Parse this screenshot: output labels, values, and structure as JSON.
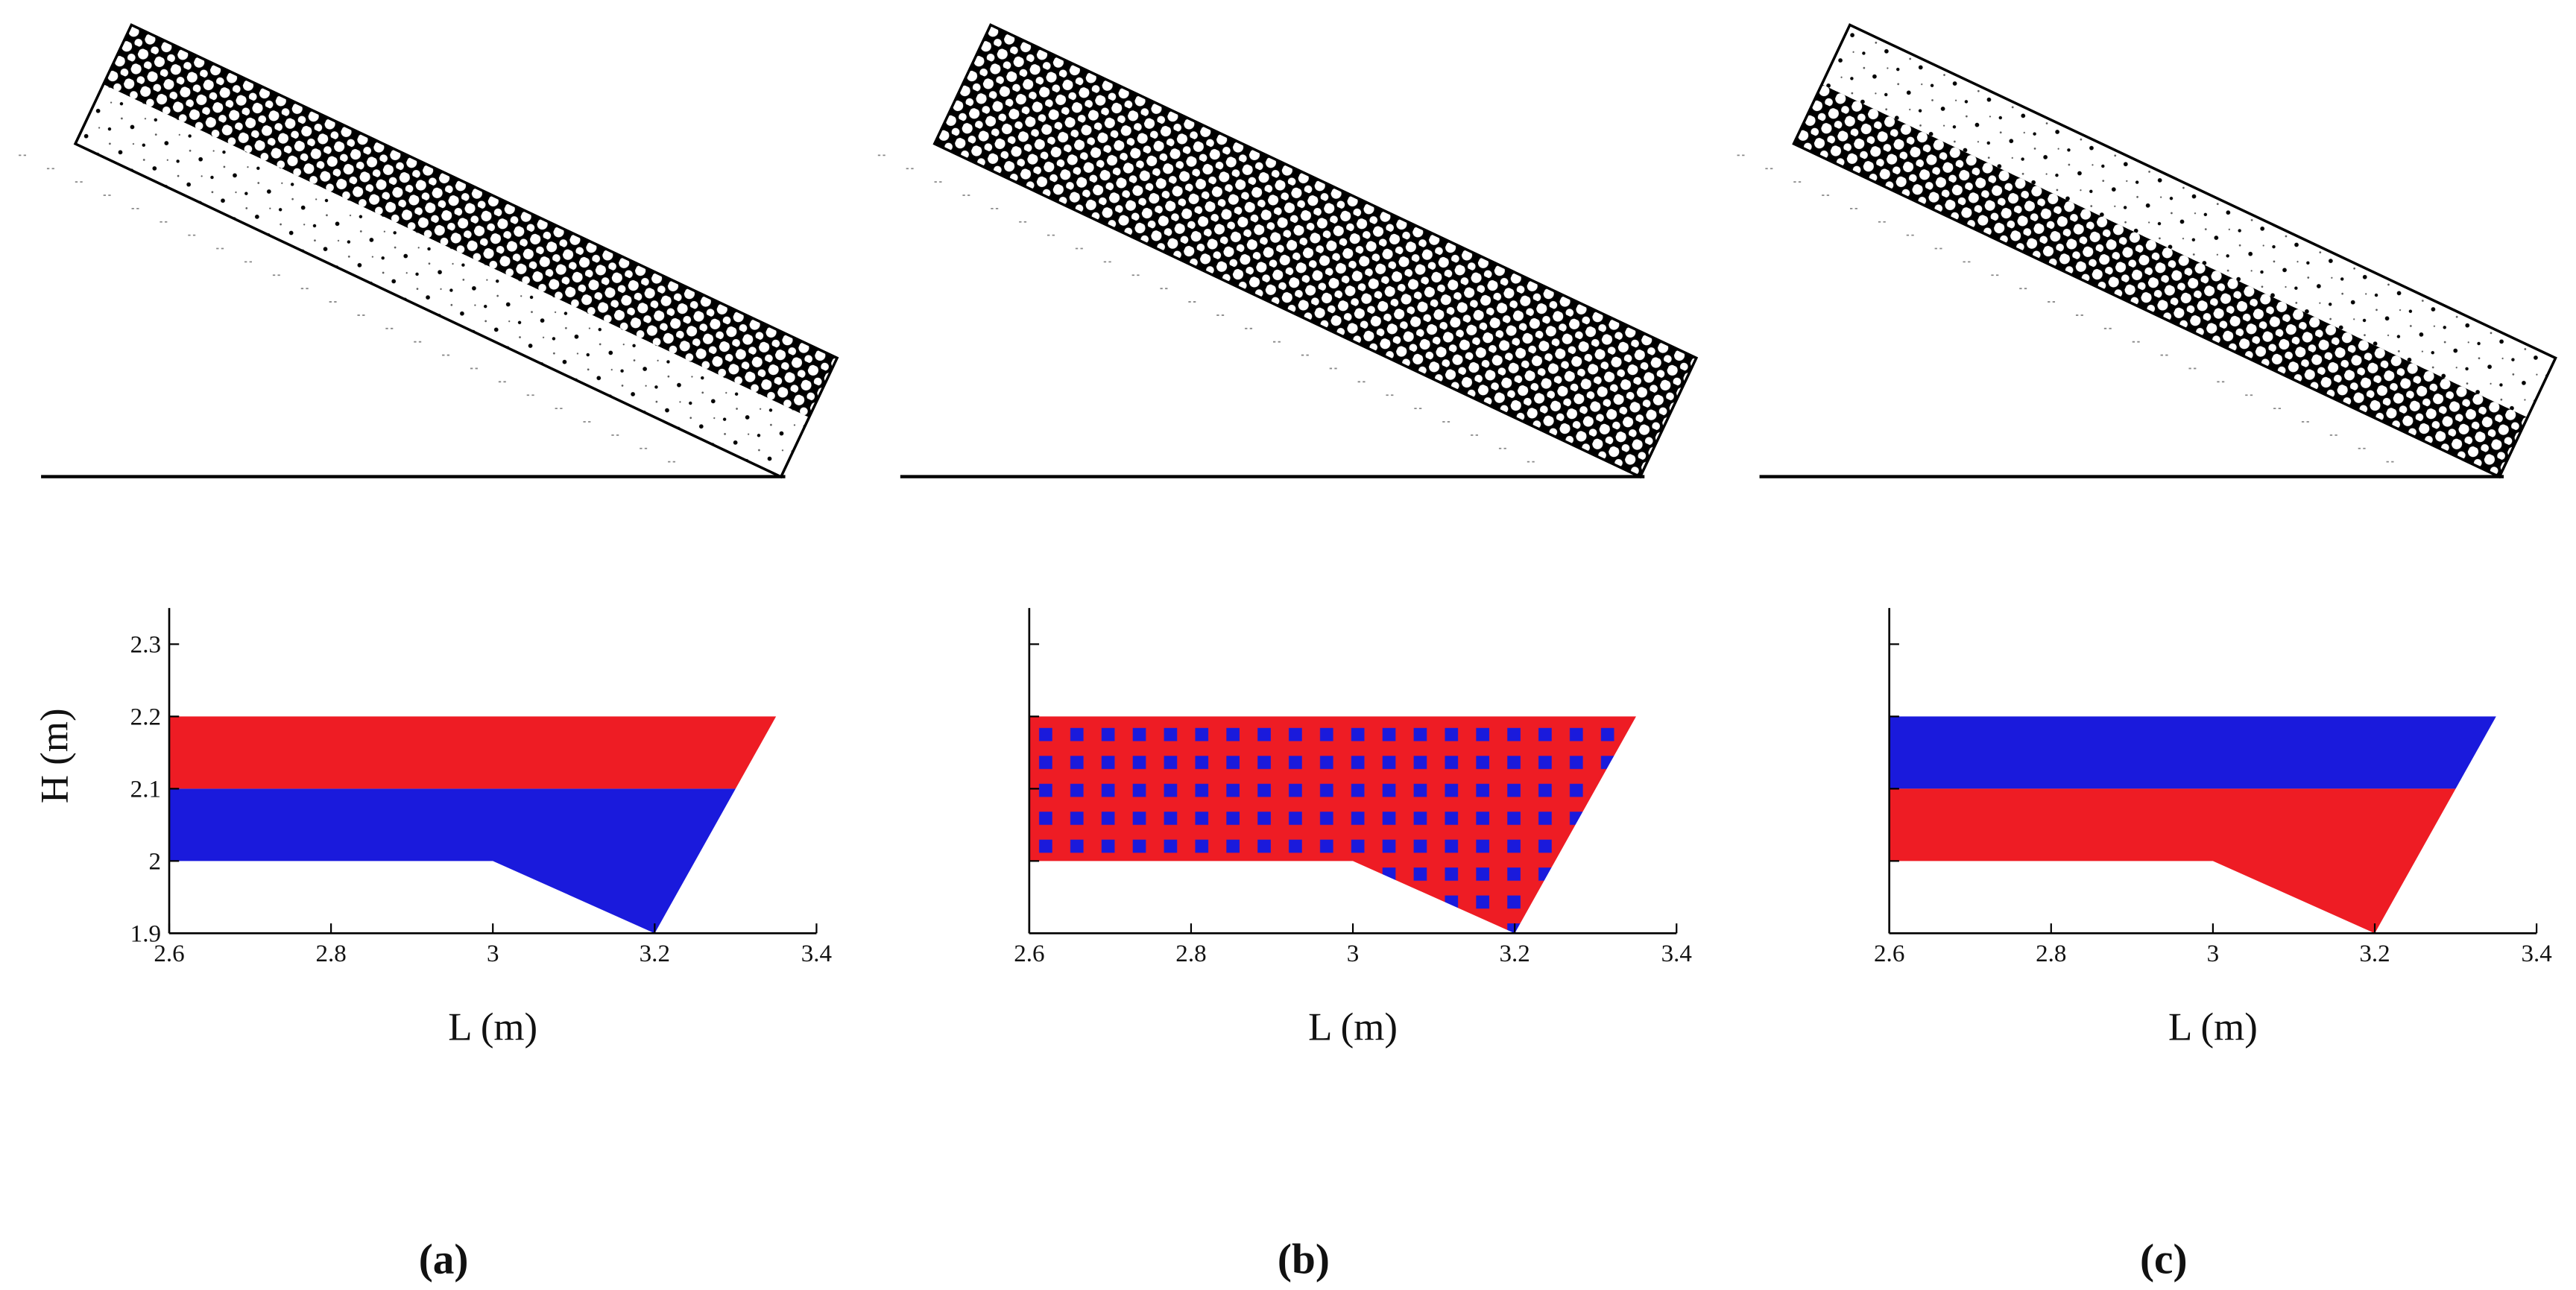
{
  "chart_data": [
    {
      "type": "polygon",
      "label": "(a)",
      "xlabel": "L (m)",
      "ylabel": "H (m)",
      "xlim": [
        2.6,
        3.4
      ],
      "ylim": [
        1.9,
        2.35
      ],
      "xticks": [
        2.6,
        2.8,
        3,
        3.2,
        3.4
      ],
      "yticks": [
        1.9,
        2,
        2.1,
        2.2,
        2.3
      ],
      "ytick_labels": true,
      "series": [
        {
          "color": "#ee1c24",
          "x": [
            2.6,
            3.35,
            3.3,
            2.6
          ],
          "y": [
            2.2,
            2.2,
            2.1,
            2.1
          ]
        },
        {
          "color": "#1a1adc",
          "x": [
            2.6,
            3.3,
            3.2,
            3.0,
            2.6
          ],
          "y": [
            2.1,
            2.1,
            1.9,
            2.0,
            2.0
          ]
        }
      ]
    },
    {
      "type": "polygon",
      "label": "(b)",
      "xlabel": "L (m)",
      "xlim": [
        2.6,
        3.4
      ],
      "ylim": [
        1.9,
        2.35
      ],
      "xticks": [
        2.6,
        2.8,
        3,
        3.2,
        3.4
      ],
      "yticks": [
        1.9,
        2,
        2.1,
        2.2,
        2.3
      ],
      "ytick_labels": false,
      "series": [
        {
          "color": "#ee1c24",
          "pattern_color": "#1a1adc",
          "x": [
            2.6,
            3.35,
            3.2,
            3.0,
            2.6
          ],
          "y": [
            2.2,
            2.2,
            1.9,
            2.0,
            2.0
          ]
        }
      ]
    },
    {
      "type": "polygon",
      "label": "(c)",
      "xlabel": "L (m)",
      "xlim": [
        2.6,
        3.4
      ],
      "ylim": [
        1.9,
        2.35
      ],
      "xticks": [
        2.6,
        2.8,
        3,
        3.2,
        3.4
      ],
      "yticks": [
        1.9,
        2,
        2.1,
        2.2,
        2.3
      ],
      "ytick_labels": false,
      "series": [
        {
          "color": "#1a1adc",
          "x": [
            2.6,
            3.35,
            3.3,
            2.6
          ],
          "y": [
            2.2,
            2.2,
            2.1,
            2.1
          ]
        },
        {
          "color": "#ee1c24",
          "x": [
            2.6,
            3.3,
            3.2,
            3.0,
            2.6
          ],
          "y": [
            2.1,
            2.1,
            1.9,
            2.0,
            2.0
          ]
        }
      ]
    }
  ]
}
